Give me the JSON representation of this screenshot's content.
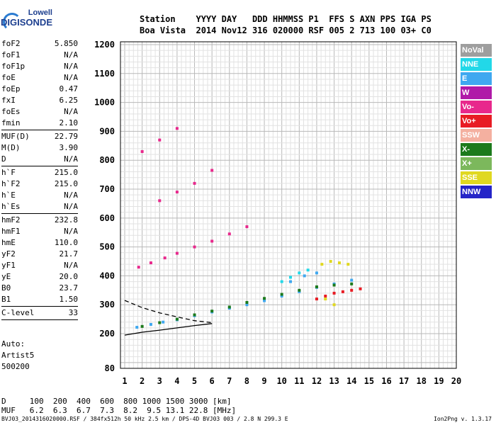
{
  "logo": {
    "line1": "Lowell",
    "line2": "DIGISONDE"
  },
  "header": {
    "line1": "Station    YYYY DAY   DDD HHMMSS P1  FFS S AXN PPS IGA PS",
    "line2": "Boa Vista  2014 Nov12 316 020000 RSF 005 2 713 100 03+ C0"
  },
  "params_group1": [
    {
      "k": "foF2",
      "v": "5.850"
    },
    {
      "k": "foF1",
      "v": "N/A"
    },
    {
      "k": "foF1p",
      "v": "N/A"
    },
    {
      "k": "foE",
      "v": "N/A"
    },
    {
      "k": "foEp",
      "v": "0.47"
    },
    {
      "k": "fxI",
      "v": "6.25"
    },
    {
      "k": "foEs",
      "v": "N/A"
    },
    {
      "k": "fmin",
      "v": "2.10"
    }
  ],
  "params_group2": [
    {
      "k": "MUF(D)",
      "v": "22.79"
    },
    {
      "k": "M(D)",
      "v": "3.90"
    },
    {
      "k": "D",
      "v": "N/A"
    }
  ],
  "params_group3": [
    {
      "k": "h`F",
      "v": "215.0"
    },
    {
      "k": "h`F2",
      "v": "215.0"
    },
    {
      "k": "h`E",
      "v": "N/A"
    },
    {
      "k": "h`Es",
      "v": "N/A"
    }
  ],
  "params_group4": [
    {
      "k": "hmF2",
      "v": "232.8"
    },
    {
      "k": "hmF1",
      "v": "N/A"
    },
    {
      "k": "hmE",
      "v": "110.0"
    },
    {
      "k": "yF2",
      "v": "21.7"
    },
    {
      "k": "yF1",
      "v": "N/A"
    },
    {
      "k": "yE",
      "v": "20.0"
    },
    {
      "k": "B0",
      "v": "23.7"
    },
    {
      "k": "B1",
      "v": "1.50"
    }
  ],
  "params_group5": [
    {
      "k": "C-level",
      "v": "33"
    }
  ],
  "auto": {
    "line1": "Auto:",
    "line2": "Artist5",
    "line3": "500200"
  },
  "legend": [
    {
      "label": "NoVal",
      "color": "#9e9e9e"
    },
    {
      "label": "NNE",
      "color": "#22d8e8"
    },
    {
      "label": "E",
      "color": "#3fa8f0"
    },
    {
      "label": "W",
      "color": "#b01aa8"
    },
    {
      "label": "Vo-",
      "color": "#e8288c"
    },
    {
      "label": "Vo+",
      "color": "#e81c24"
    },
    {
      "label": "SSW",
      "color": "#f4b0a0"
    },
    {
      "label": "X-",
      "color": "#1c7a1c"
    },
    {
      "label": "X+",
      "color": "#7cb85c"
    },
    {
      "label": "SSE",
      "color": "#e0d820"
    },
    {
      "label": "NNW",
      "color": "#2424c8"
    }
  ],
  "dmuf": {
    "line1": "D     100  200  400  600  800 1000 1500 3000 [km]",
    "line2": "MUF   6.2  6.3  6.7  7.3  8.2  9.5 13.1 22.8 [MHz]"
  },
  "footer": "BVJ03_2014316020000.RSF / 384fx512h 50 kHz 2.5 km / DPS-4D BVJ03 003 / 2.8 N 299.3 E",
  "version": "Ion2Png v. 1.3.17",
  "chart_data": {
    "type": "scatter",
    "xlim": [
      1,
      20
    ],
    "ylim": [
      80,
      1200
    ],
    "x_ticks": [
      1,
      2,
      3,
      4,
      5,
      6,
      7,
      8,
      9,
      10,
      11,
      12,
      13,
      14,
      15,
      16,
      17,
      18,
      19,
      20
    ],
    "y_ticks": [
      80,
      200,
      300,
      400,
      500,
      600,
      700,
      800,
      900,
      1000,
      1100,
      1200
    ],
    "grid": true,
    "series": [
      {
        "color": "#3fa8f0",
        "points": [
          [
            1.7,
            222
          ],
          [
            2.5,
            232
          ],
          [
            3.2,
            240
          ],
          [
            4.0,
            248
          ],
          [
            5.0,
            262
          ],
          [
            6.0,
            275
          ],
          [
            7.0,
            288
          ],
          [
            8.0,
            300
          ],
          [
            9.0,
            314
          ],
          [
            10.0,
            330
          ],
          [
            11.0,
            345
          ],
          [
            12.0,
            360
          ],
          [
            13.0,
            372
          ],
          [
            14.0,
            385
          ],
          [
            10.5,
            380
          ],
          [
            11.3,
            400
          ],
          [
            12.0,
            410
          ]
        ]
      },
      {
        "color": "#e8288c",
        "points": [
          [
            1.8,
            430
          ],
          [
            2.5,
            445
          ],
          [
            3.3,
            462
          ],
          [
            4.0,
            478
          ],
          [
            5.0,
            500
          ],
          [
            6.0,
            520
          ],
          [
            7.0,
            545
          ],
          [
            8.0,
            570
          ],
          [
            3.0,
            660
          ],
          [
            4.0,
            690
          ],
          [
            5.0,
            720
          ],
          [
            6.0,
            765
          ],
          [
            2.0,
            830
          ],
          [
            3.0,
            870
          ],
          [
            4.0,
            910
          ]
        ]
      },
      {
        "color": "#1c7a1c",
        "points": [
          [
            2.0,
            225
          ],
          [
            3.0,
            238
          ],
          [
            4.0,
            250
          ],
          [
            5.0,
            265
          ],
          [
            6.0,
            278
          ],
          [
            7.0,
            292
          ],
          [
            8.0,
            308
          ],
          [
            9.0,
            322
          ],
          [
            10.0,
            336
          ],
          [
            11.0,
            350
          ],
          [
            12.0,
            362
          ],
          [
            13.0,
            368
          ],
          [
            14.0,
            372
          ]
        ]
      },
      {
        "color": "#e0d820",
        "points": [
          [
            12.3,
            440
          ],
          [
            12.8,
            450
          ],
          [
            13.3,
            445
          ],
          [
            13.8,
            440
          ],
          [
            12.5,
            320
          ],
          [
            13.0,
            300
          ]
        ]
      },
      {
        "color": "#22d8e8",
        "points": [
          [
            10.0,
            380
          ],
          [
            10.5,
            395
          ],
          [
            11.0,
            410
          ],
          [
            11.5,
            420
          ]
        ]
      },
      {
        "color": "#e81c24",
        "points": [
          [
            12.0,
            320
          ],
          [
            12.5,
            330
          ],
          [
            13.0,
            340
          ],
          [
            13.5,
            345
          ],
          [
            14.0,
            350
          ],
          [
            14.5,
            355
          ]
        ]
      }
    ],
    "curves": [
      {
        "style": "dashed",
        "points": [
          [
            1,
            315
          ],
          [
            2,
            290
          ],
          [
            3,
            272
          ],
          [
            4,
            258
          ],
          [
            5,
            245
          ],
          [
            6,
            238
          ]
        ]
      },
      {
        "style": "solid",
        "points": [
          [
            1,
            195
          ],
          [
            2,
            205
          ],
          [
            3,
            212
          ],
          [
            4,
            220
          ],
          [
            5,
            228
          ],
          [
            6,
            235
          ]
        ]
      }
    ]
  }
}
